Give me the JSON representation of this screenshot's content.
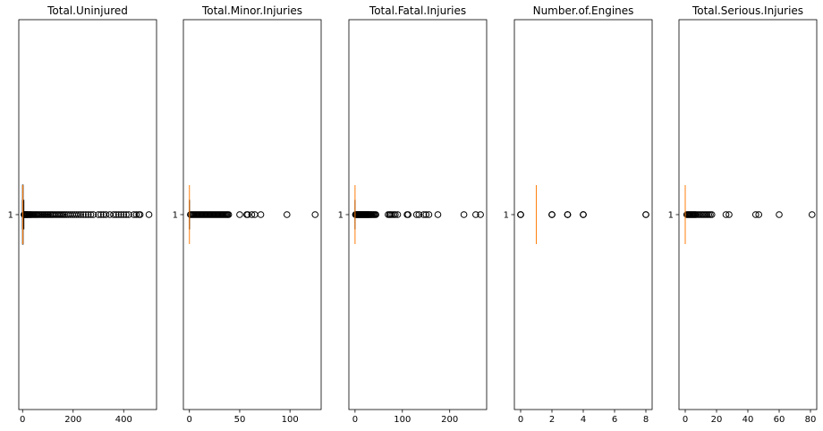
{
  "chart_data": [
    {
      "type": "boxplot",
      "orientation": "horizontal",
      "title": "Total.Uninjured",
      "categories": [
        "1"
      ],
      "xlim": [
        -15,
        530
      ],
      "xticks": [
        0,
        200,
        400
      ],
      "box": {
        "whislo": 0,
        "q1": 0,
        "med": 1,
        "q3": 2,
        "whishi": 5
      },
      "fliers": [
        6,
        8,
        10,
        12,
        14,
        16,
        18,
        20,
        22,
        25,
        28,
        30,
        33,
        36,
        40,
        44,
        48,
        52,
        56,
        60,
        65,
        70,
        75,
        80,
        85,
        90,
        95,
        100,
        105,
        110,
        115,
        120,
        126,
        132,
        138,
        144,
        150,
        156,
        162,
        168,
        175,
        182,
        190,
        198,
        206,
        214,
        222,
        230,
        240,
        250,
        260,
        270,
        280,
        300,
        310,
        320,
        330,
        345,
        360,
        370,
        380,
        390,
        400,
        410,
        420,
        440,
        450,
        460,
        465,
        500
      ]
    },
    {
      "type": "boxplot",
      "orientation": "horizontal",
      "title": "Total.Minor.Injuries",
      "categories": [
        "1"
      ],
      "xlim": [
        -6,
        131
      ],
      "xticks": [
        0,
        50,
        100
      ],
      "box": {
        "whislo": 0,
        "q1": 0,
        "med": 0,
        "q3": 0,
        "whishi": 0
      },
      "fliers": [
        1,
        2,
        3,
        4,
        5,
        6,
        7,
        8,
        9,
        10,
        11,
        12,
        13,
        14,
        15,
        16,
        17,
        18,
        19,
        20,
        21,
        22,
        23,
        24,
        25,
        26,
        27,
        28,
        29,
        30,
        31,
        32,
        33,
        34,
        35,
        36,
        37,
        38,
        39,
        50,
        57,
        58,
        62,
        65,
        71,
        97,
        125
      ]
    },
    {
      "type": "boxplot",
      "orientation": "horizontal",
      "title": "Total.Fatal.Injuries",
      "categories": [
        "1"
      ],
      "xlim": [
        -13,
        278
      ],
      "xticks": [
        0,
        100,
        200
      ],
      "box": {
        "whislo": 0,
        "q1": 0,
        "med": 0,
        "q3": 0,
        "whishi": 0
      },
      "fliers": [
        1,
        2,
        3,
        4,
        5,
        6,
        7,
        8,
        9,
        10,
        11,
        12,
        13,
        14,
        15,
        16,
        17,
        18,
        19,
        20,
        21,
        22,
        23,
        24,
        25,
        26,
        27,
        28,
        29,
        30,
        31,
        33,
        34,
        35,
        37,
        39,
        40,
        42,
        44,
        70,
        73,
        75,
        78,
        82,
        85,
        90,
        110,
        112,
        130,
        135,
        145,
        150,
        156,
        175,
        230,
        255,
        265
      ]
    },
    {
      "type": "boxplot",
      "orientation": "horizontal",
      "title": "Number.of.Engines",
      "categories": [
        "1"
      ],
      "xlim": [
        -0.4,
        8.4
      ],
      "xticks": [
        0,
        2,
        4,
        6,
        8
      ],
      "box": {
        "whislo": 1,
        "q1": 1,
        "med": 1,
        "q3": 1,
        "whishi": 1
      },
      "fliers": [
        0,
        0,
        0,
        2,
        2,
        2,
        3,
        3,
        3,
        4,
        4,
        4,
        8,
        8
      ]
    },
    {
      "type": "boxplot",
      "orientation": "horizontal",
      "title": "Total.Serious.Injuries",
      "categories": [
        "1"
      ],
      "xlim": [
        -4,
        84
      ],
      "xticks": [
        0,
        20,
        40,
        60,
        80
      ],
      "box": {
        "whislo": 0,
        "q1": 0,
        "med": 0,
        "q3": 0,
        "whishi": 0
      },
      "fliers": [
        1,
        1.5,
        2,
        2.5,
        3,
        3.5,
        4,
        4.5,
        5,
        5.5,
        6,
        6.5,
        7,
        8,
        9,
        10,
        11,
        12,
        13,
        14,
        15,
        16,
        17,
        26,
        28,
        45,
        47,
        60,
        81
      ]
    }
  ]
}
